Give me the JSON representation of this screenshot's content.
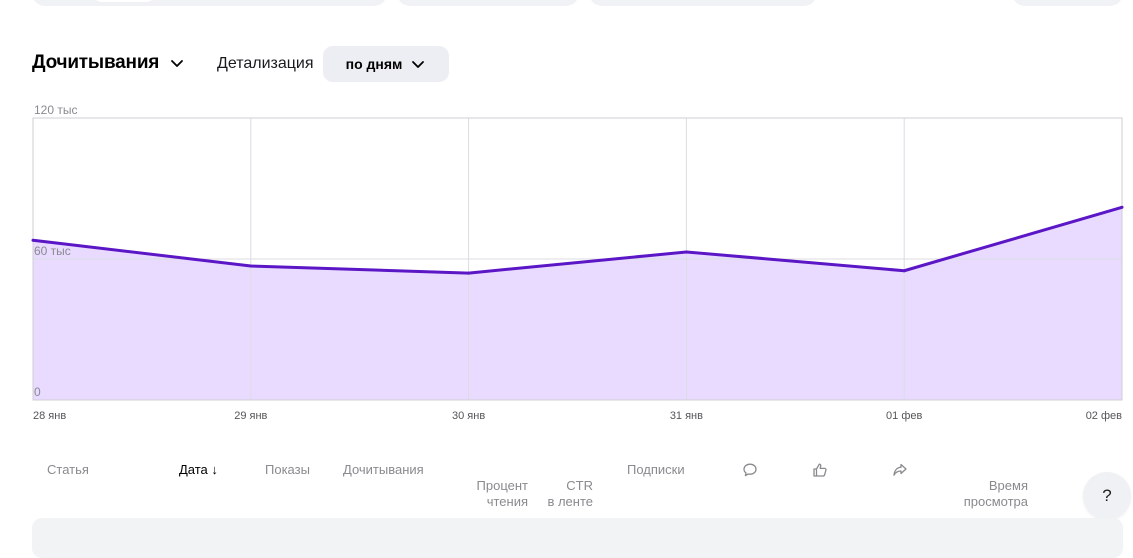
{
  "metric_selector": {
    "label": "Дочитывания"
  },
  "detail": {
    "label": "Детализация",
    "value": "по дням"
  },
  "chart_data": {
    "type": "area",
    "series": [
      {
        "name": "Дочитывания",
        "values": [
          68000,
          57000,
          54000,
          63000,
          55000,
          82000
        ]
      }
    ],
    "categories": [
      "28 янв",
      "29 янв",
      "30 янв",
      "31 янв",
      "01 фев",
      "02 фев"
    ],
    "ylim": [
      0,
      120000
    ],
    "yticks": [
      {
        "value": 120000,
        "label": "120 тыс"
      },
      {
        "value": 60000,
        "label": "60 тыс"
      },
      {
        "value": 0,
        "label": "0"
      }
    ],
    "colors": {
      "line": "#5b16c6",
      "fill": "#e9dbff",
      "grid": "#dcdce0"
    },
    "grid": true
  },
  "table": {
    "columns": [
      {
        "key": "article",
        "label": "Статья"
      },
      {
        "key": "date",
        "label": "Дата",
        "sort": "↓"
      },
      {
        "key": "shows",
        "label": "Показы"
      },
      {
        "key": "readthroughs",
        "label": "Дочитывания"
      },
      {
        "key": "read_pct",
        "label": "Процент\nчтения"
      },
      {
        "key": "ctr",
        "label": "CTR\nв ленте"
      },
      {
        "key": "subscriptions",
        "label": "Подписки"
      },
      {
        "key": "comments",
        "icon": "comment-icon"
      },
      {
        "key": "likes",
        "icon": "like-icon"
      },
      {
        "key": "reposts",
        "icon": "share-icon"
      },
      {
        "key": "watch_time",
        "label": "Время\nпросмотра"
      }
    ]
  },
  "help": {
    "label": "?"
  }
}
